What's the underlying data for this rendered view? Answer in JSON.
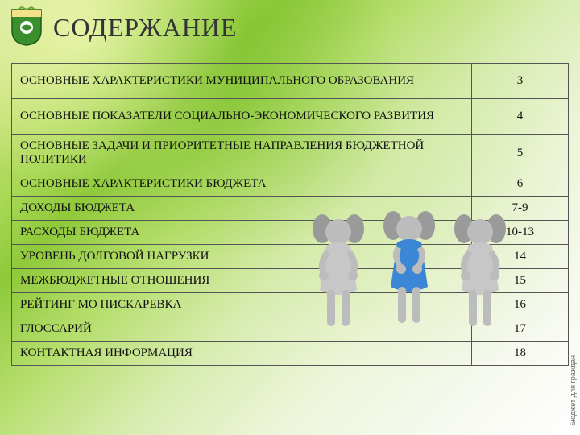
{
  "title": "СОДЕРЖАНИЕ",
  "logo": {
    "shield_fill": "#3a8f2c",
    "shield_stroke": "#1e5a16",
    "accent": "#f4e28a",
    "band": "#ffffff"
  },
  "table": {
    "border_color": "#555555",
    "rows": [
      {
        "label": "ОСНОВНЫЕ ХАРАКТЕРИСТИКИ МУНИЦИПАЛЬНОГО ОБРАЗОВАНИЯ",
        "page": "3",
        "tall": true
      },
      {
        "label": "ОСНОВНЫЕ ПОКАЗАТЕЛИ СОЦИАЛЬНО-ЭКОНОМИЧЕСКОГО РАЗВИТИЯ",
        "page": "4",
        "tall": true
      },
      {
        "label": "ОСНОВНЫЕ ЗАДАЧИ И ПРИОРИТЕТНЫЕ НАПРАВЛЕНИЯ БЮДЖЕТНОЙ ПОЛИТИКИ",
        "page": "5",
        "tall": true
      },
      {
        "label": "ОСНОВНЫЕ ХАРАКТЕРИСТИКИ БЮДЖЕТА",
        "page": "6"
      },
      {
        "label": "ДОХОДЫ БЮДЖЕТА",
        "page": "7-9"
      },
      {
        "label": "РАСХОДЫ БЮДЖЕТА",
        "page": "10-13"
      },
      {
        "label": "УРОВЕНЬ ДОЛГОВОЙ НАГРУЗКИ",
        "page": "14"
      },
      {
        "label": "МЕЖБЮДЖЕТНЫЕ ОТНОШЕНИЯ",
        "page": "15"
      },
      {
        "label": "РЕЙТИНГ МО ПИСКАРЕВКА",
        "page": "16"
      },
      {
        "label": "ГЛОССАРИЙ",
        "page": "17"
      },
      {
        "label": "КОНТАКТНАЯ ИНФОРМАЦИЯ",
        "page": "18"
      }
    ]
  },
  "figures": {
    "skin": "#bcbcbc",
    "hair": "#9a9a9a",
    "dress1": "#c7c7c7",
    "dress2": "#3b87d6",
    "dress3": "#c7c7c7"
  },
  "side_caption": "Бюджет для граждан"
}
